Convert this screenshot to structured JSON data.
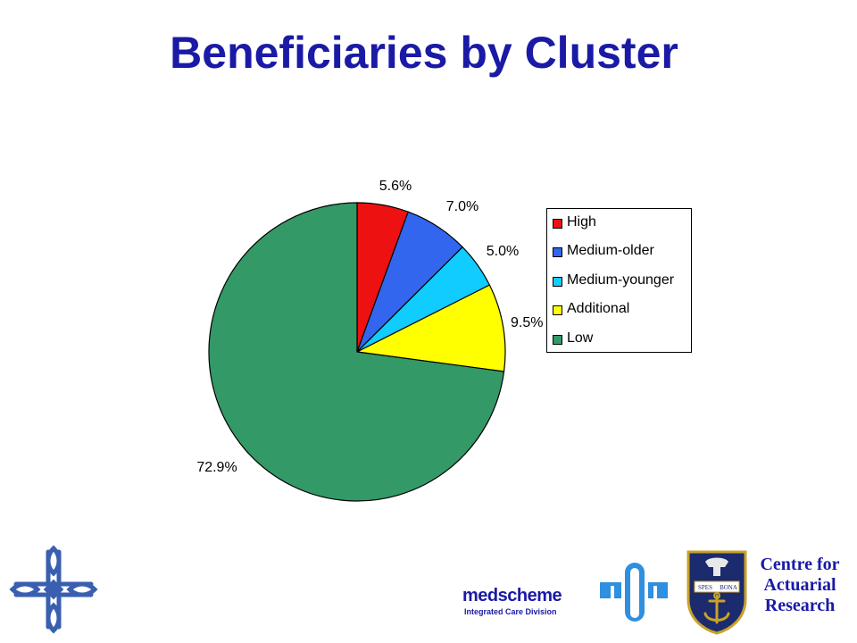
{
  "slide": {
    "title": "Beneficiaries by Cluster"
  },
  "chart_data": {
    "type": "pie",
    "title": "Beneficiaries by Cluster",
    "start_angle_deg": 90,
    "direction": "clockwise",
    "legend_placement": "right",
    "slices": [
      {
        "name": "High",
        "value": 5.6,
        "label": "5.6%",
        "color": "#ee1111"
      },
      {
        "name": "Medium-older",
        "value": 7.0,
        "label": "7.0%",
        "color": "#3366ee"
      },
      {
        "name": "Medium-younger",
        "value": 5.0,
        "label": "5.0%",
        "color": "#11ccff"
      },
      {
        "name": "Additional",
        "value": 9.5,
        "label": "9.5%",
        "color": "#ffff00"
      },
      {
        "name": "Low",
        "value": 72.9,
        "label": "72.9%",
        "color": "#339966"
      }
    ]
  },
  "logos": {
    "medscheme": "medscheme",
    "medscheme_sub": "Integrated Care Division",
    "car_line1": "Centre for",
    "car_line2": "Actuarial",
    "car_line3": "Research",
    "crest_motto_1": "SPES",
    "crest_motto_2": "BONA"
  },
  "colors": {
    "title": "#1a1aa6",
    "logo_blue": "#1a1aa6",
    "m_logo_blue": "#2f8fe0",
    "cross_blue": "#3a5fb0"
  }
}
